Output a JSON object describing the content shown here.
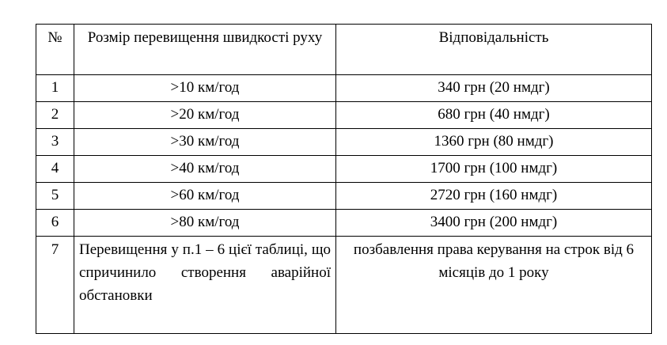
{
  "table": {
    "headers": [
      "№",
      "Розмір перевищення швидкості руху",
      "Відповідальність"
    ],
    "rows": [
      {
        "num": "1",
        "excess": ">10 км/год",
        "liability": "340 грн (20 нмдг)"
      },
      {
        "num": "2",
        "excess": ">20 км/год",
        "liability": "680 грн (40 нмдг)"
      },
      {
        "num": "3",
        "excess": ">30 км/год",
        "liability": "1360 грн (80 нмдг)"
      },
      {
        "num": "4",
        "excess": ">40 км/год",
        "liability": "1700 грн (100 нмдг)"
      },
      {
        "num": "5",
        "excess": ">60 км/год",
        "liability": "2720 грн (160 нмдг)"
      },
      {
        "num": "6",
        "excess": ">80 км/год",
        "liability": "3400 грн (200 нмдг)"
      }
    ],
    "last_row": {
      "num": "7",
      "excess": "Перевищення у п.1 – 6 цієї таблиці, що спричинило створення аварійної обстановки",
      "liability": "позбавлення права керування на строк від 6 місяців до 1 року"
    }
  }
}
